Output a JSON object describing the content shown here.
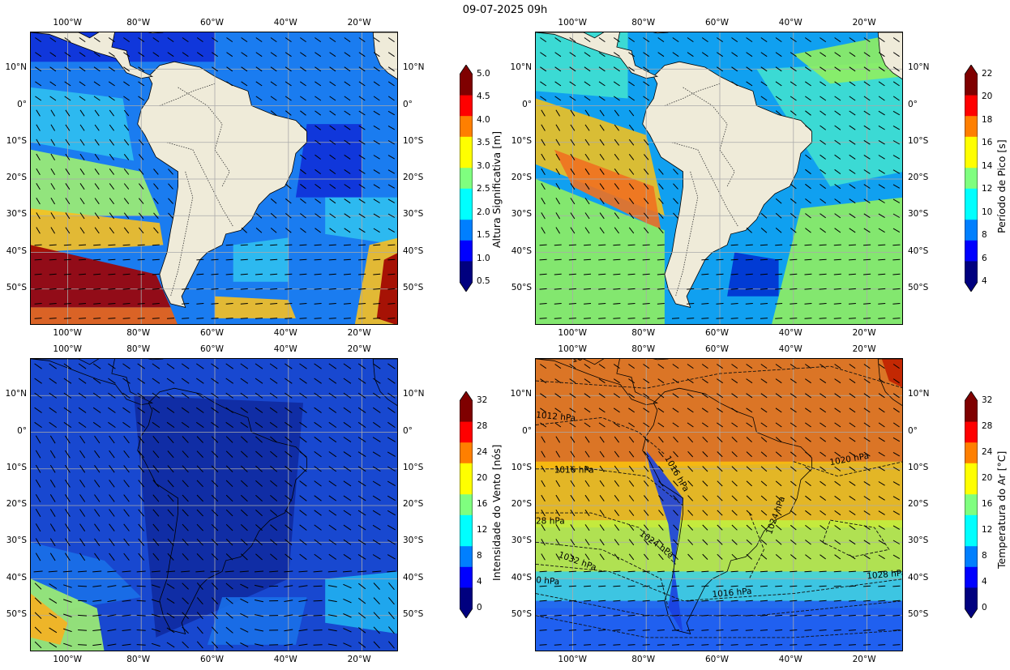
{
  "title": "09-07-2025 09h",
  "lon_ticks": [
    "100°W",
    "80°W",
    "60°W",
    "40°W",
    "20°W"
  ],
  "lat_ticks": [
    "10°N",
    "0°",
    "10°S",
    "20°S",
    "30°S",
    "40°S",
    "50°S"
  ],
  "panels": [
    {
      "id": "wave-height",
      "colorbar": {
        "label": "Altura Significativa [m]",
        "ticks": [
          "0.5",
          "1.0",
          "1.5",
          "2.0",
          "2.5",
          "3.0",
          "3.5",
          "4.0",
          "4.5",
          "5.0"
        ],
        "range": [
          0.5,
          5.0
        ]
      },
      "field_colors": [
        "#1030d8",
        "#1a7cf0",
        "#30c0f0",
        "#a0f070",
        "#f8c020",
        "#f06010",
        "#a00000"
      ]
    },
    {
      "id": "peak-period",
      "colorbar": {
        "label": "Período de Pico [s]",
        "ticks": [
          "4",
          "6",
          "8",
          "10",
          "12",
          "14",
          "16",
          "18",
          "20",
          "22"
        ],
        "range": [
          4,
          22
        ]
      },
      "field_colors": [
        "#0030d0",
        "#10a0f0",
        "#40e0d0",
        "#90ee60",
        "#f0c020",
        "#f07020"
      ]
    },
    {
      "id": "wind-speed",
      "colorbar": {
        "label": "Intensidade do Vento [nós]",
        "ticks": [
          "0",
          "4",
          "8",
          "12",
          "16",
          "20",
          "24",
          "28",
          "32"
        ],
        "range": [
          0,
          32
        ]
      },
      "field_colors": [
        "#102aa0",
        "#1848d0",
        "#1a70e8",
        "#20b0f0",
        "#a0f070",
        "#f8b020"
      ]
    },
    {
      "id": "air-temperature",
      "colorbar": {
        "label": "Temperatura do Ar [°C]",
        "ticks": [
          "0",
          "4",
          "8",
          "12",
          "16",
          "20",
          "24",
          "28",
          "32"
        ],
        "range": [
          0,
          32
        ]
      },
      "field_colors": [
        "#000090",
        "#2060f0",
        "#40d0e0",
        "#c0f040",
        "#f8c010",
        "#f07810",
        "#c02000"
      ],
      "isobar_labels": [
        "1020 hPa",
        "1012 hPa",
        "1016 hPa",
        "1016 hPa",
        "1020 hPa",
        "28 hPa",
        "1024 hPa",
        "1024 hPa",
        "1032 hPa",
        "0 hPa",
        "1016 hPa",
        "1028 hPa"
      ]
    }
  ],
  "colors": {
    "land": "#efebd9",
    "colormap_jet": [
      "#00007f",
      "#0000ff",
      "#007fff",
      "#00ffff",
      "#7fff7f",
      "#ffff00",
      "#ff7f00",
      "#ff0000",
      "#7f0000"
    ]
  }
}
